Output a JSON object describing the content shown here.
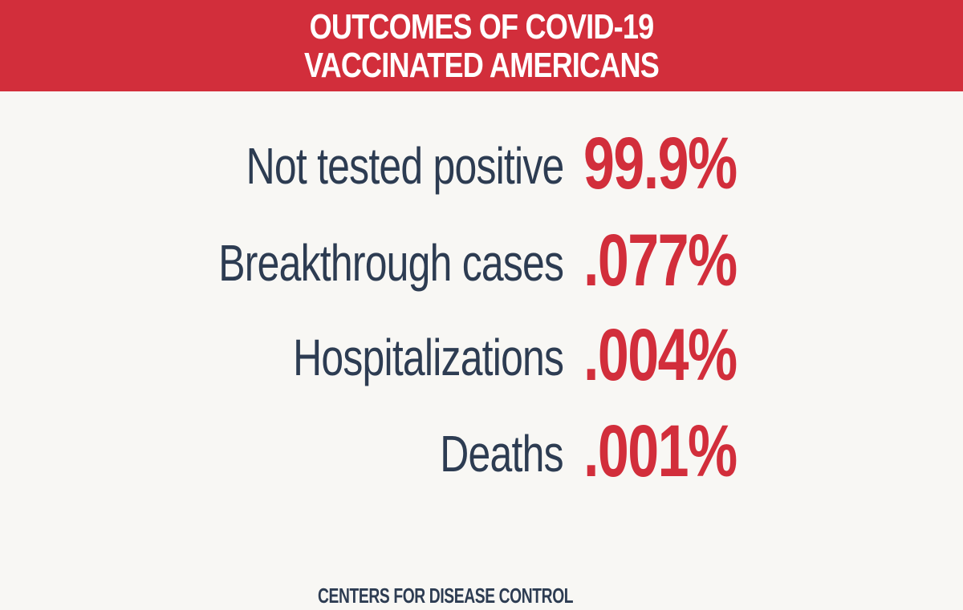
{
  "title": {
    "line1": "OUTCOMES OF COVID-19",
    "line2": "VACCINATED AMERICANS"
  },
  "stats": [
    {
      "label": "Not tested positive",
      "value": "99.9%"
    },
    {
      "label": "Breakthrough cases",
      "value": ".077%"
    },
    {
      "label": "Hospitalizations",
      "value": ".004%"
    },
    {
      "label": "Deaths",
      "value": ".001%"
    }
  ],
  "source": "CENTERS FOR DISEASE CONTROL",
  "colors": {
    "accent_red": "#d22e3b",
    "text_navy": "#2d3c52",
    "background": "#f8f7f4"
  }
}
